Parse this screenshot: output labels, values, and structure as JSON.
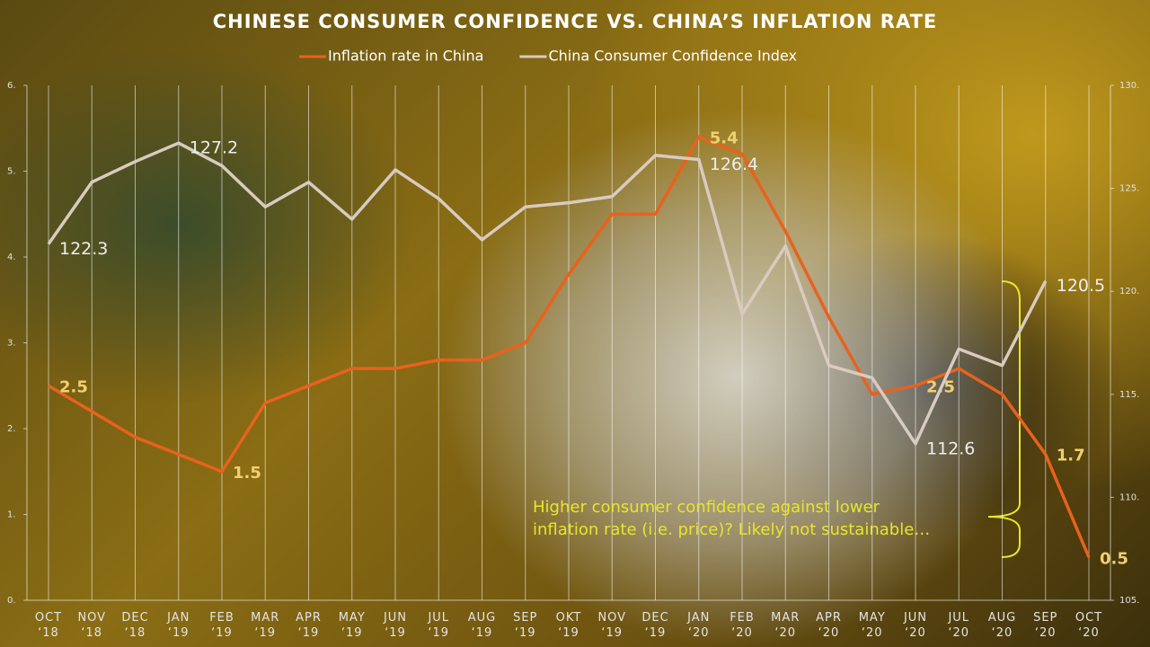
{
  "chart_data": {
    "type": "line",
    "title": "CHINESE CONSUMER CONFIDENCE VS. CHINA’S INFLATION RATE",
    "categories": [
      "OCT ‘18",
      "NOV ‘18",
      "DEC ‘18",
      "JAN ‘19",
      "FEB ‘19",
      "MAR ‘19",
      "APR ‘19",
      "MAY ‘19",
      "JUN ‘19",
      "JUL ‘19",
      "AUG ‘19",
      "SEP ‘19",
      "OKT ‘19",
      "NOV ‘19",
      "DEC ‘19",
      "JAN ‘20",
      "FEB ‘20",
      "MAR ‘20",
      "APR ‘20",
      "MAY ‘20",
      "JUN ‘20",
      "JUL ‘20",
      "AUG ‘20",
      "SEP ‘20",
      "OCT ‘20"
    ],
    "series": [
      {
        "name": "Inflation rate in China",
        "color": "#e8621e",
        "values": [
          2.5,
          2.2,
          1.9,
          1.7,
          1.5,
          2.3,
          2.5,
          2.7,
          2.7,
          2.8,
          2.8,
          3.0,
          3.8,
          4.5,
          4.5,
          5.4,
          5.2,
          4.3,
          3.3,
          2.4,
          2.5,
          2.7,
          2.4,
          1.7,
          0.5
        ],
        "value_labels": [
          "2.5",
          null,
          null,
          null,
          "1.5",
          null,
          null,
          null,
          null,
          null,
          null,
          null,
          null,
          null,
          null,
          "5.4",
          null,
          null,
          null,
          null,
          "2.5",
          null,
          null,
          "1.7",
          "0.5"
        ]
      },
      {
        "name": "China Consumer Confidence Index",
        "color": "#d9cbc0",
        "axis": "y2",
        "values": [
          122.3,
          125.3,
          126.3,
          127.2,
          126.1,
          124.1,
          125.3,
          123.5,
          125.9,
          124.5,
          122.5,
          124.1,
          124.3,
          124.6,
          126.6,
          126.4,
          118.9,
          122.2,
          116.4,
          115.8,
          112.6,
          117.2,
          116.4,
          120.5,
          null
        ],
        "value_labels": [
          "122.3",
          null,
          null,
          "127.2",
          null,
          null,
          null,
          null,
          null,
          null,
          null,
          null,
          null,
          null,
          null,
          "126.4",
          null,
          null,
          null,
          null,
          "112.6",
          null,
          null,
          "120.5",
          null
        ]
      }
    ],
    "ylim": [
      0,
      6
    ],
    "yticks": [
      {
        "value": 0,
        "label": "0."
      },
      {
        "value": 1,
        "label": "1."
      },
      {
        "value": 2,
        "label": "2."
      },
      {
        "value": 3,
        "label": "3."
      },
      {
        "value": 4,
        "label": "4."
      },
      {
        "value": 5,
        "label": "5."
      },
      {
        "value": 6,
        "label": "6."
      }
    ],
    "y2lim": [
      105,
      130
    ],
    "y2ticks": [
      {
        "value": 105,
        "label": "105."
      },
      {
        "value": 110,
        "label": "110."
      },
      {
        "value": 115,
        "label": "115."
      },
      {
        "value": 120,
        "label": "120."
      },
      {
        "value": 125,
        "label": "125."
      },
      {
        "value": 130,
        "label": "130."
      }
    ],
    "annotation": [
      "Higher consumer confidence against lower",
      "inflation rate (i.e. price)? Likely not sustainable…"
    ],
    "legend": "top"
  }
}
